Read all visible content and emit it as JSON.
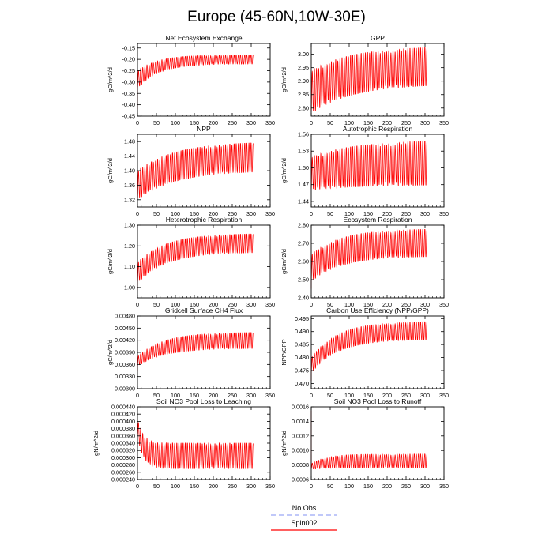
{
  "title": "Europe (45-60N,10W-30E)",
  "legend": {
    "items": [
      {
        "label": "No Obs",
        "color": "#9aa6f5",
        "dash": true
      },
      {
        "label": "Spin002",
        "color": "#ff0000",
        "dash": false
      }
    ]
  },
  "chart_data": [
    {
      "type": "line",
      "title": "Net Ecosystem Exchange",
      "ylabel": "gC/m^2/d",
      "xlim": [
        0,
        350
      ],
      "xticks": [
        0,
        50,
        100,
        150,
        200,
        250,
        300,
        350
      ],
      "ylim": [
        -0.45,
        -0.13
      ],
      "yticks": [
        -0.45,
        -0.4,
        -0.35,
        -0.3,
        -0.25,
        -0.2,
        -0.15
      ],
      "ytick_labels": [
        "-0.45",
        "-0.40",
        "-0.35",
        "-0.30",
        "-0.25",
        "-0.20",
        "-0.15"
      ],
      "series": [
        {
          "x_range": [
            0,
            305
          ],
          "start_min": -0.33,
          "start_max": -0.25,
          "end_min": -0.22,
          "end_max": -0.18,
          "tau": 55,
          "outlier": -0.42,
          "period": 5.6
        }
      ]
    },
    {
      "type": "line",
      "title": "GPP",
      "ylabel": "gC/m^2/d",
      "xlim": [
        0,
        350
      ],
      "xticks": [
        0,
        50,
        100,
        150,
        200,
        250,
        300,
        350
      ],
      "ylim": [
        2.77,
        3.04
      ],
      "yticks": [
        2.8,
        2.85,
        2.9,
        2.95,
        3.0
      ],
      "ytick_labels": [
        "2.80",
        "2.85",
        "2.90",
        "2.95",
        "3.00"
      ],
      "series": [
        {
          "x_range": [
            0,
            305
          ],
          "start_min": 2.78,
          "start_max": 2.94,
          "end_min": 2.89,
          "end_max": 3.03,
          "tau": 110,
          "outlier": 2.81,
          "period": 5.6
        }
      ]
    },
    {
      "type": "line",
      "title": "NPP",
      "ylabel": "gC/m^2/d",
      "xlim": [
        0,
        350
      ],
      "xticks": [
        0,
        50,
        100,
        150,
        200,
        250,
        300,
        350
      ],
      "ylim": [
        1.3,
        1.5
      ],
      "yticks": [
        1.32,
        1.36,
        1.4,
        1.44,
        1.48
      ],
      "ytick_labels": [
        "1.32",
        "1.36",
        "1.40",
        "1.44",
        "1.48"
      ],
      "series": [
        {
          "x_range": [
            0,
            305
          ],
          "start_min": 1.32,
          "start_max": 1.4,
          "end_min": 1.4,
          "end_max": 1.48,
          "tau": 100,
          "outlier": 1.34,
          "period": 5.6
        }
      ]
    },
    {
      "type": "line",
      "title": "Autotrophic Respiration",
      "ylabel": "gC/m^2/d",
      "xlim": [
        0,
        350
      ],
      "xticks": [
        0,
        50,
        100,
        150,
        200,
        250,
        300,
        350
      ],
      "ylim": [
        1.43,
        1.56
      ],
      "yticks": [
        1.44,
        1.47,
        1.5,
        1.53,
        1.56
      ],
      "ytick_labels": [
        "1.44",
        "1.47",
        "1.50",
        "1.53",
        "1.56"
      ],
      "series": [
        {
          "x_range": [
            0,
            305
          ],
          "start_min": 1.46,
          "start_max": 1.52,
          "end_min": 1.47,
          "end_max": 1.55,
          "tau": 120,
          "outlier": 1.53,
          "period": 5.6
        }
      ]
    },
    {
      "type": "line",
      "title": "Heterotrophic Respiration",
      "ylabel": "gC/m^2/d",
      "xlim": [
        0,
        350
      ],
      "xticks": [
        0,
        50,
        100,
        150,
        200,
        250,
        300,
        350
      ],
      "ylim": [
        0.95,
        1.3
      ],
      "yticks": [
        1.0,
        1.1,
        1.2,
        1.3
      ],
      "ytick_labels": [
        "1.00",
        "1.10",
        "1.20",
        "1.30"
      ],
      "series": [
        {
          "x_range": [
            0,
            305
          ],
          "start_min": 1.02,
          "start_max": 1.12,
          "end_min": 1.17,
          "end_max": 1.26,
          "tau": 75,
          "outlier": 0.99,
          "period": 5.6
        }
      ]
    },
    {
      "type": "line",
      "title": "Ecosystem Respiration",
      "ylabel": "gC/m^2/d",
      "xlim": [
        0,
        350
      ],
      "xticks": [
        0,
        50,
        100,
        150,
        200,
        250,
        300,
        350
      ],
      "ylim": [
        2.4,
        2.8
      ],
      "yticks": [
        2.4,
        2.5,
        2.6,
        2.7,
        2.8
      ],
      "ytick_labels": [
        "2.40",
        "2.50",
        "2.60",
        "2.70",
        "2.80"
      ],
      "series": [
        {
          "x_range": [
            0,
            305
          ],
          "start_min": 2.49,
          "start_max": 2.64,
          "end_min": 2.63,
          "end_max": 2.78,
          "tau": 80,
          "outlier": 2.45,
          "period": 5.6
        }
      ]
    },
    {
      "type": "line",
      "title": "Gridcell Surface CH4 Flux",
      "ylabel": "gC/m^2/d",
      "xlim": [
        0,
        350
      ],
      "xticks": [
        0,
        50,
        100,
        150,
        200,
        250,
        300,
        350
      ],
      "ylim": [
        0.003,
        0.0048
      ],
      "yticks": [
        0.003,
        0.0033,
        0.0036,
        0.0039,
        0.0042,
        0.0045,
        0.0048
      ],
      "ytick_labels": [
        "0.00300",
        "0.00330",
        "0.00360",
        "0.00390",
        "0.00420",
        "0.00450",
        "0.00480"
      ],
      "series": [
        {
          "x_range": [
            0,
            305
          ],
          "start_min": 0.00355,
          "start_max": 0.0038,
          "end_min": 0.004,
          "end_max": 0.0044,
          "tau": 70,
          "outlier": 0.00345,
          "period": 5.6
        }
      ]
    },
    {
      "type": "line",
      "title": "Carbon Use Efficiency (NPP/GPP)",
      "ylabel": "NPP/GPP",
      "xlim": [
        0,
        350
      ],
      "xticks": [
        0,
        50,
        100,
        150,
        200,
        250,
        300,
        350
      ],
      "ylim": [
        0.468,
        0.496
      ],
      "yticks": [
        0.47,
        0.475,
        0.48,
        0.485,
        0.49,
        0.495
      ],
      "ytick_labels": [
        "0.470",
        "0.475",
        "0.480",
        "0.485",
        "0.490",
        "0.495"
      ],
      "series": [
        {
          "x_range": [
            0,
            305
          ],
          "start_min": 0.474,
          "start_max": 0.48,
          "end_min": 0.487,
          "end_max": 0.494,
          "tau": 70,
          "outlier": 0.471,
          "period": 5.6
        }
      ]
    },
    {
      "type": "line",
      "title": "Soil NO3 Pool Loss to Leaching",
      "ylabel": "gN/m^2/d",
      "xlim": [
        0,
        350
      ],
      "xticks": [
        0,
        50,
        100,
        150,
        200,
        250,
        300,
        350
      ],
      "ylim": [
        0.00024,
        0.00044
      ],
      "yticks": [
        0.00024,
        0.00026,
        0.00028,
        0.0003,
        0.00032,
        0.00034,
        0.00036,
        0.00038,
        0.0004,
        0.00042,
        0.00044
      ],
      "ytick_labels": [
        "0.000240",
        "0.000260",
        "0.000280",
        "0.000300",
        "0.000320",
        "0.000340",
        "0.000360",
        "0.000380",
        "0.000400",
        "0.000420",
        "0.000440"
      ],
      "series": [
        {
          "x_range": [
            0,
            305
          ],
          "start_min": 0.00036,
          "start_max": 0.00041,
          "end_min": 0.00027,
          "end_max": 0.00034,
          "tau": 15,
          "outlier": 0.0004,
          "period": 5.6
        }
      ]
    },
    {
      "type": "line",
      "title": "Soil NO3 Pool Loss to Runoff",
      "ylabel": "gN/m^2/d",
      "xlim": [
        0,
        350
      ],
      "xticks": [
        0,
        50,
        100,
        150,
        200,
        250,
        300,
        350
      ],
      "ylim": [
        0.0006,
        0.0016
      ],
      "yticks": [
        0.0006,
        0.0008,
        0.001,
        0.0012,
        0.0014,
        0.0016
      ],
      "ytick_labels": [
        "0.0006",
        "0.0008",
        "0.0010",
        "0.0012",
        "0.0014",
        "0.0016"
      ],
      "series": [
        {
          "x_range": [
            0,
            305
          ],
          "start_min": 0.00074,
          "start_max": 0.00082,
          "end_min": 0.00076,
          "end_max": 0.00095,
          "tau": 40,
          "outlier": 0.00155,
          "period": 5.6
        }
      ]
    }
  ]
}
